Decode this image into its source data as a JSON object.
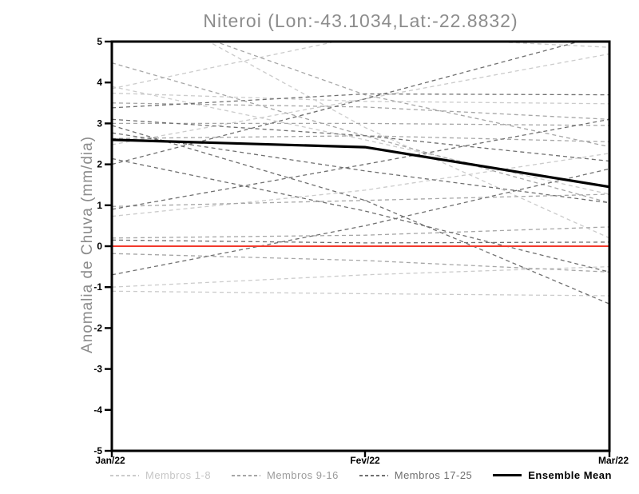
{
  "chart_data": {
    "type": "line",
    "title": "Niteroi (Lon:-43.1034,Lat:-22.8832)",
    "xlabel": "",
    "ylabel": "Anomalia de Chuva (mm/dia)",
    "x_categories": [
      "Jan/22",
      "Fev/22",
      "Mar/22"
    ],
    "ylim": [
      -5,
      5
    ],
    "yticks": [
      -5,
      -4,
      -3,
      -2,
      -1,
      0,
      1,
      2,
      3,
      4,
      5
    ],
    "grid": false,
    "zero_line": {
      "value": 0,
      "color": "#f2392c"
    },
    "series_groups": [
      {
        "name": "Membros 1-8",
        "color": "#cbcbcb",
        "style": "dashed",
        "members": [
          [
            3.9,
            2.6,
            1.27
          ],
          [
            3.74,
            3.54,
            3.48
          ],
          [
            3.85,
            5.15,
            4.86
          ],
          [
            2.48,
            3.6,
            4.7
          ],
          [
            6.3,
            2.9,
            0.2
          ],
          [
            0.73,
            1.37,
            2.27
          ],
          [
            -1.0,
            -0.7,
            -0.5
          ],
          [
            -1.1,
            -1.16,
            -1.21
          ]
        ]
      },
      {
        "name": "Membros 9-16",
        "color": "#a6a6a6",
        "style": "dashed",
        "members": [
          [
            4.48,
            2.7,
            1.06
          ],
          [
            3.5,
            3.4,
            3.1
          ],
          [
            3.0,
            3.0,
            2.95
          ],
          [
            0.97,
            1.12,
            1.27
          ],
          [
            5.9,
            3.7,
            2.43
          ],
          [
            2.63,
            2.7,
            2.55
          ],
          [
            0.2,
            0.27,
            0.47
          ],
          [
            -0.18,
            -0.35,
            -0.63
          ]
        ]
      },
      {
        "name": "Membros 17-25",
        "color": "#6f6f6f",
        "style": "dashed",
        "members": [
          [
            3.38,
            3.72,
            3.7
          ],
          [
            3.1,
            2.7,
            2.08
          ],
          [
            2.0,
            3.6,
            5.2
          ],
          [
            2.77,
            1.84,
            1.06
          ],
          [
            2.14,
            0.86,
            -0.63
          ],
          [
            0.15,
            0.08,
            0.1
          ],
          [
            2.95,
            1.12,
            -1.41
          ],
          [
            -0.7,
            0.5,
            1.89
          ],
          [
            0.9,
            2.0,
            3.1
          ]
        ]
      }
    ],
    "mean_series": {
      "name": "Ensemble Mean",
      "color": "#000000",
      "style": "solid",
      "values": [
        2.6,
        2.42,
        1.45
      ]
    },
    "legend_position": "bottom"
  },
  "legend": {
    "items": [
      {
        "label": "Membros 1-8",
        "color": "#cbcbcb",
        "text_color": "#c6c6c6",
        "style": "dashed"
      },
      {
        "label": "Membros 9-16",
        "color": "#a6a6a6",
        "text_color": "#9c9c9c",
        "style": "dashed"
      },
      {
        "label": "Membros 17-25",
        "color": "#6f6f6f",
        "text_color": "#6f6f6f",
        "style": "dashed"
      },
      {
        "label": "Ensemble Mean",
        "color": "#000000",
        "text_color": "#000000",
        "style": "solid"
      }
    ]
  }
}
